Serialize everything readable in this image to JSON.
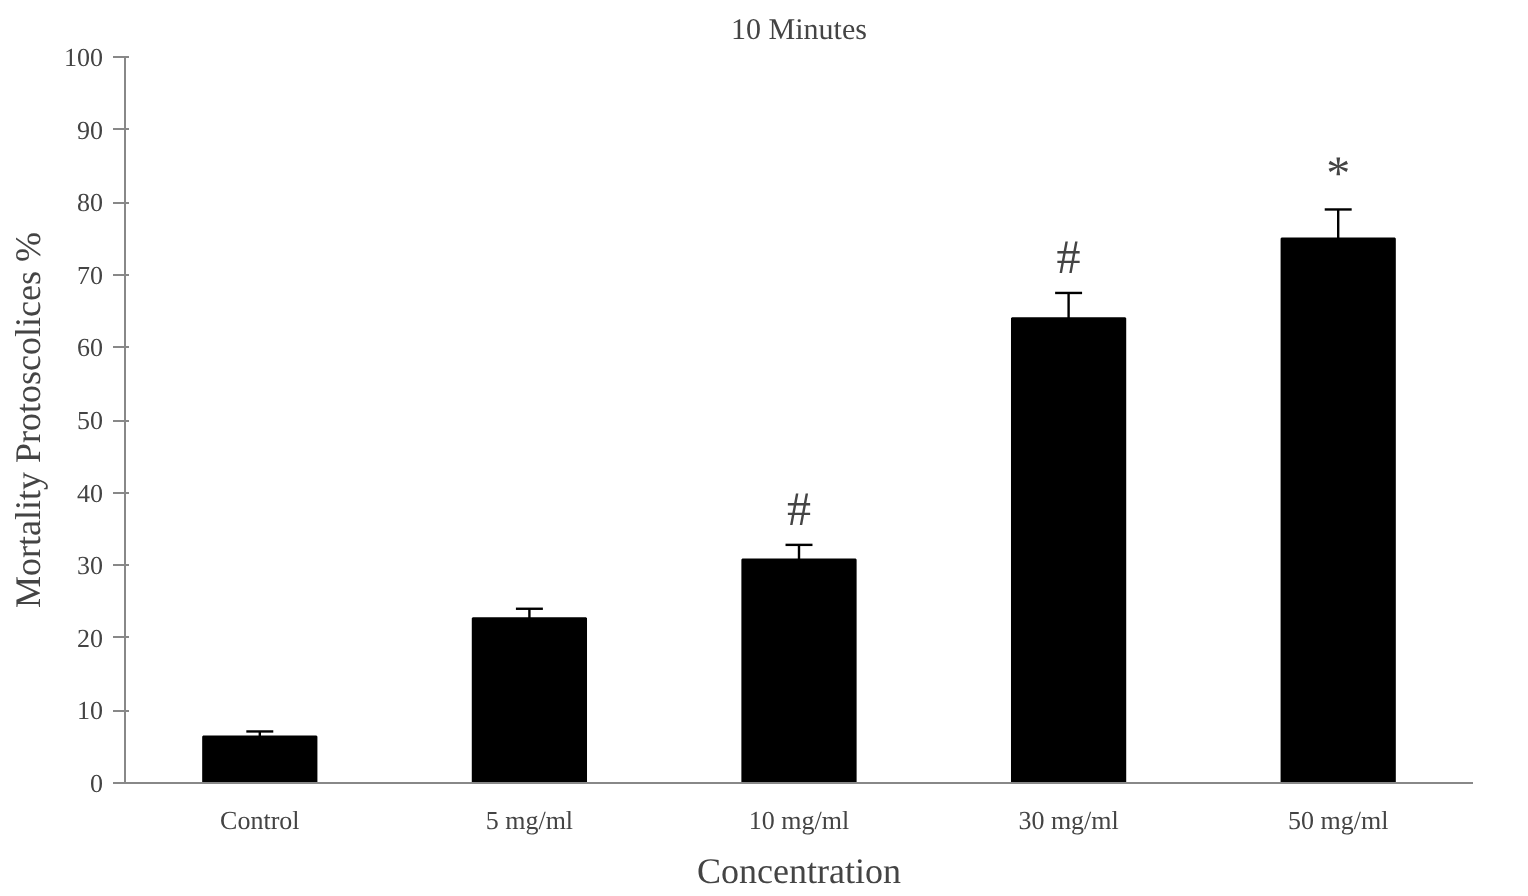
{
  "chart_data": {
    "type": "bar",
    "title": "10 Minutes",
    "xlabel": "Concentration",
    "ylabel": "Mortality Protoscolices %",
    "categories": [
      "Control",
      "5 mg/ml",
      "10 mg/ml",
      "30 mg/ml",
      "50 mg/ml"
    ],
    "values": [
      6.4,
      22.7,
      30.8,
      64,
      75
    ],
    "color": "#000000",
    "errors": [
      [
        6.4,
        7.1
      ],
      [
        22.7,
        24
      ],
      [
        30.8,
        32.8
      ],
      [
        64,
        67.5
      ],
      [
        75,
        79
      ]
    ],
    "ylim": [
      0,
      100
    ],
    "yticks": [
      0,
      10,
      20,
      30,
      40,
      50,
      60,
      70,
      80,
      90,
      100
    ],
    "grid": false,
    "annotations": [
      {
        "text": "#",
        "x": "10 mg/ml",
        "y": 32.8
      },
      {
        "text": "#",
        "x": "30 mg/ml",
        "y": 67.5
      },
      {
        "text": "*",
        "x": "50 mg/ml",
        "y": 79
      }
    ]
  }
}
